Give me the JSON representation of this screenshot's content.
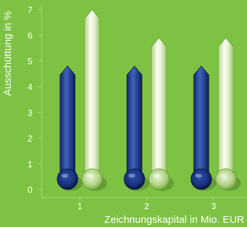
{
  "chart_data": {
    "type": "bar",
    "title": "",
    "xlabel": "Zeichnungskapital in Mio. EUR",
    "ylabel": "Ausschüttung in %",
    "categories": [
      "1",
      "2",
      "3"
    ],
    "yticks": [
      "0",
      "1",
      "2",
      "3",
      "4",
      "5",
      "6",
      "7"
    ],
    "ylim": [
      0,
      7
    ],
    "series": [
      {
        "values": [
          4.8,
          4.8,
          4.8
        ],
        "color": "#1f3d8c"
      },
      {
        "values": [
          7.0,
          5.9,
          5.9
        ],
        "color": "#e4f0cf"
      }
    ],
    "background_color": "#7dc242",
    "grid": false,
    "legend": "none"
  }
}
